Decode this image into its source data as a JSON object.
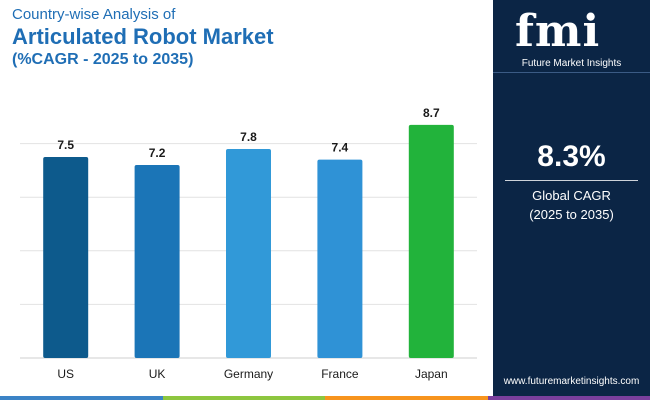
{
  "header": {
    "subtitle": "Country-wise Analysis of",
    "title": "Articulated Robot Market",
    "range": "(%CAGR - 2025 to 2035)"
  },
  "chart_data": {
    "type": "bar",
    "categories": [
      "US",
      "UK",
      "Germany",
      "France",
      "Japan"
    ],
    "values": [
      7.5,
      7.2,
      7.8,
      7.4,
      8.7
    ],
    "colors": [
      "#0d5a8c",
      "#1b75b7",
      "#3199d8",
      "#2f92d6",
      "#22b33b"
    ],
    "ylim": [
      0,
      10
    ],
    "grid": true,
    "data_labels": true
  },
  "side_panel": {
    "logo_text": "fmi",
    "logo_sub": "Future Market Insights",
    "kpi_value": "8.3%",
    "kpi_label_line1": "Global CAGR",
    "kpi_label_line2": "(2025 to 2035)",
    "website": "www.futuremarketinsights.com",
    "background": "#0b2545"
  },
  "bottom_bar_colors": [
    "#3b83c6",
    "#8dc63f",
    "#f7941d",
    "#7a3f9d"
  ]
}
